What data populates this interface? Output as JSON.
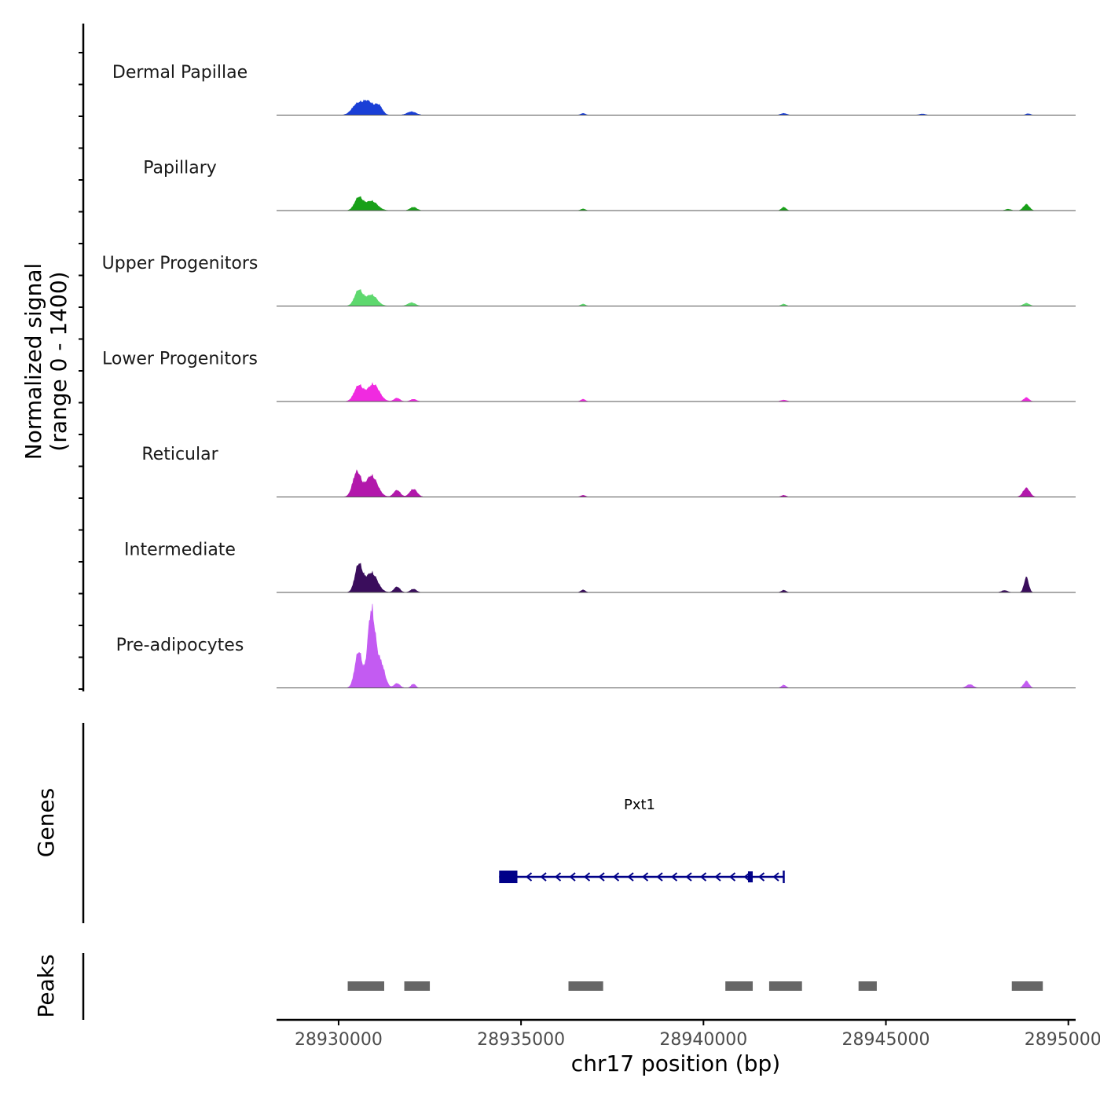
{
  "chart_data": {
    "type": "area",
    "title": "",
    "signal_axis_label_line1": "Normalized signal",
    "signal_axis_label_line2": "(range 0 - 1400)",
    "ylim": [
      0,
      1400
    ],
    "xlabel": "chr17 position (bp)",
    "xlim": [
      28928300,
      28950200
    ],
    "x_ticks": [
      28930000,
      28935000,
      28940000,
      28945000,
      28950000
    ],
    "x_tick_labels": [
      "28930000",
      "28935000",
      "28940000",
      "28945000",
      "28950000"
    ],
    "tracks": [
      {
        "name": "Dermal Papillae",
        "color": "#1a3fd6",
        "peaks": [
          [
            28930500,
            180,
            140
          ],
          [
            28930800,
            240,
            150
          ],
          [
            28931100,
            160,
            100
          ],
          [
            28932000,
            60,
            120
          ],
          [
            28936700,
            30,
            60
          ],
          [
            28942200,
            30,
            80
          ],
          [
            28946000,
            20,
            80
          ],
          [
            28948900,
            25,
            60
          ]
        ]
      },
      {
        "name": "Papillary",
        "color": "#18a018",
        "peaks": [
          [
            28930550,
            230,
            110
          ],
          [
            28930900,
            170,
            160
          ],
          [
            28932050,
            60,
            90
          ],
          [
            28936700,
            30,
            60
          ],
          [
            28942200,
            60,
            60
          ],
          [
            28948350,
            25,
            70
          ],
          [
            28948850,
            110,
            80
          ]
        ]
      },
      {
        "name": "Upper Progenitors",
        "color": "#5ed86e",
        "peaks": [
          [
            28930550,
            280,
            110
          ],
          [
            28930900,
            200,
            150
          ],
          [
            28932000,
            60,
            100
          ],
          [
            28936700,
            35,
            60
          ],
          [
            28942200,
            35,
            60
          ],
          [
            28948850,
            50,
            80
          ]
        ]
      },
      {
        "name": "Lower Progenitors",
        "color": "#f02ae0",
        "peaks": [
          [
            28930550,
            280,
            120
          ],
          [
            28930950,
            310,
            160
          ],
          [
            28931600,
            60,
            80
          ],
          [
            28932050,
            40,
            80
          ],
          [
            28936700,
            40,
            60
          ],
          [
            28942200,
            25,
            80
          ],
          [
            28948850,
            70,
            70
          ]
        ]
      },
      {
        "name": "Reticular",
        "color": "#b218ab",
        "peaks": [
          [
            28930500,
            440,
            110
          ],
          [
            28930900,
            380,
            160
          ],
          [
            28931600,
            120,
            90
          ],
          [
            28932050,
            140,
            100
          ],
          [
            28936700,
            30,
            60
          ],
          [
            28942200,
            30,
            60
          ],
          [
            28948850,
            160,
            90
          ]
        ]
      },
      {
        "name": "Intermediate",
        "color": "#3a0d5c",
        "peaks": [
          [
            28930550,
            490,
            100
          ],
          [
            28930900,
            350,
            160
          ],
          [
            28931600,
            100,
            80
          ],
          [
            28932050,
            60,
            80
          ],
          [
            28936700,
            45,
            60
          ],
          [
            28942200,
            40,
            60
          ],
          [
            28948250,
            35,
            80
          ],
          [
            28948850,
            270,
            60
          ]
        ]
      },
      {
        "name": "Pre-adipocytes",
        "color": "#c35bf2",
        "peaks": [
          [
            28930550,
            650,
            100
          ],
          [
            28930900,
            1380,
            100
          ],
          [
            28931150,
            450,
            110
          ],
          [
            28931600,
            80,
            80
          ],
          [
            28932050,
            70,
            60
          ],
          [
            28942200,
            50,
            60
          ],
          [
            28947300,
            60,
            90
          ],
          [
            28948850,
            120,
            70
          ]
        ]
      }
    ],
    "genes_label": "Genes",
    "gene": {
      "name": "Pxt1",
      "strand": "-",
      "start": 28934400,
      "end": 28942200,
      "exons": [
        [
          28934400,
          28934900
        ],
        [
          28941220,
          28941350
        ]
      ],
      "color": "#000088"
    },
    "peaks_label": "Peaks",
    "peak_color": "#666666",
    "peak_regions": [
      [
        28930250,
        28931250
      ],
      [
        28931800,
        28932500
      ],
      [
        28936300,
        28937250
      ],
      [
        28940600,
        28941350
      ],
      [
        28941800,
        28942700
      ],
      [
        28944250,
        28944750
      ],
      [
        28948450,
        28949300
      ]
    ]
  }
}
